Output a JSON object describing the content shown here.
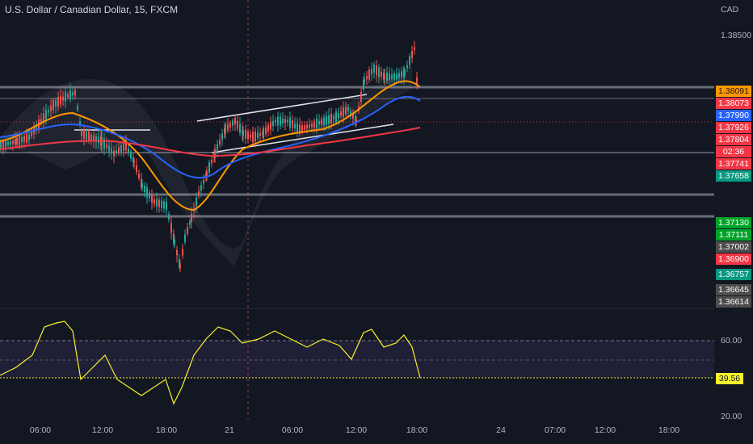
{
  "header": {
    "title": "U.S. Dollar / Canadian Dollar, 15, FXCM",
    "currency": "CAD"
  },
  "price_axis": {
    "top_label": "1.38500",
    "tags": [
      {
        "label": "1.38091",
        "value": 1.38091,
        "color": "#ff9800",
        "dark_text": true
      },
      {
        "label": "1.38073",
        "value": 1.38073,
        "color": "#f23645"
      },
      {
        "label": "1.37990",
        "value": 1.3799,
        "color": "#2962ff"
      },
      {
        "label": "1.37926",
        "value": 1.37926,
        "color": "#f23645"
      },
      {
        "label": "1.37804",
        "value": 1.37804,
        "color": "#f23645"
      },
      {
        "label": "02:36",
        "value": 1.37775,
        "color": "#f23645"
      },
      {
        "label": "1.37741",
        "value": 1.37741,
        "color": "#f23645"
      },
      {
        "label": "1.37658",
        "value": 1.37658,
        "color": "#089981"
      },
      {
        "label": "1.37130",
        "value": 1.3713,
        "color": "#00a329"
      },
      {
        "label": "1.37111",
        "value": 1.37111,
        "color": "#00a329"
      },
      {
        "label": "1.37002",
        "value": 1.37002,
        "color": "#4c4c4c"
      },
      {
        "label": "1.36900",
        "value": 1.369,
        "color": "#f23645"
      },
      {
        "label": "1.36757",
        "value": 1.36757,
        "color": "#089981"
      },
      {
        "label": "1.36645",
        "value": 1.36645,
        "color": "#4c4c4c"
      },
      {
        "label": "1.36614",
        "value": 1.36614,
        "color": "#4c4c4c"
      }
    ]
  },
  "rsi": {
    "upper_label": "60.00",
    "lower_label": "20.00",
    "current_label": "39.56"
  },
  "time_axis": [
    "06:00",
    "12:00",
    "18:00",
    "21",
    "06:00",
    "12:00",
    "18:00",
    "24",
    "07:00",
    "12:00",
    "18:00"
  ],
  "colors": {
    "background": "#131722",
    "up": "#26a69a",
    "down": "#ef5350",
    "ema_fast": "#ff9800",
    "ema_mid": "#2962ff",
    "ema_slow": "#f23645",
    "rsi": "#f7f22b"
  }
}
